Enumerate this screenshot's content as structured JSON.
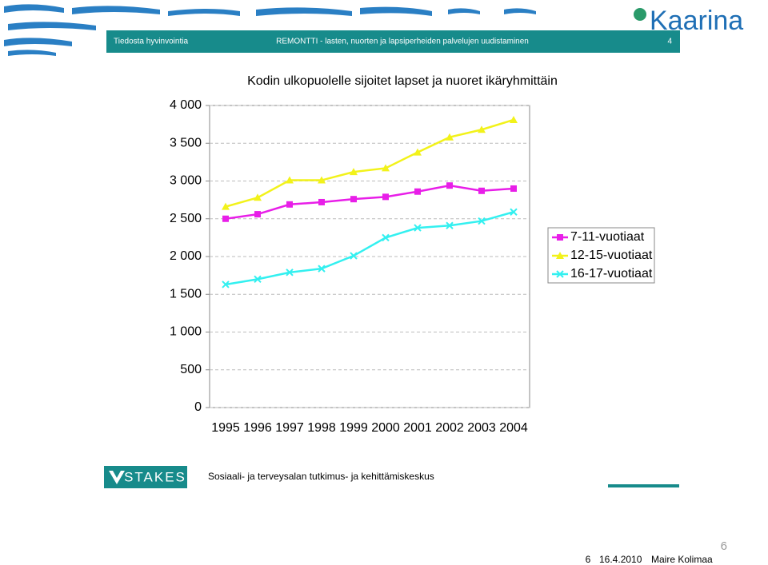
{
  "header": {
    "left": "Tiedosta hyvinvointia",
    "center": "REMONTTI - lasten, nuorten ja lapsiperheiden palvelujen uudistaminen",
    "right": "4",
    "logo": "Kaarina"
  },
  "chart_data": {
    "type": "line",
    "title": "Kodin ulkopuolelle sijoitet lapset ja nuoret ikäryhmittäin",
    "categories": [
      "1995",
      "1996",
      "1997",
      "1998",
      "1999",
      "2000",
      "2001",
      "2002",
      "2003",
      "2004"
    ],
    "series": [
      {
        "name": "7-11-vuotiaat",
        "color": "#e81ee8",
        "marker": "square",
        "values": [
          2500,
          2560,
          2690,
          2720,
          2760,
          2790,
          2860,
          2940,
          2870,
          2900
        ]
      },
      {
        "name": "12-15-vuotiaat",
        "color": "#f2f21a",
        "marker": "triangle",
        "values": [
          2660,
          2780,
          3010,
          3010,
          3120,
          3170,
          3380,
          3580,
          3680,
          3810
        ]
      },
      {
        "name": "16-17-vuotiaat",
        "color": "#33f0f0",
        "marker": "x",
        "values": [
          1630,
          1700,
          1790,
          1840,
          2010,
          2250,
          2380,
          2410,
          2470,
          2590
        ]
      }
    ],
    "ylim": [
      0,
      4000
    ],
    "yticks": [
      0,
      500,
      {
        "value": 1000,
        "label": "1 000"
      },
      {
        "value": 1500,
        "label": "1 500"
      },
      {
        "value": 2000,
        "label": "2 000"
      },
      {
        "value": 2500,
        "label": "2 500"
      },
      {
        "value": 3000,
        "label": "3 000"
      },
      {
        "value": 3500,
        "label": "3 500"
      },
      {
        "value": 4000,
        "label": "4 000"
      }
    ],
    "grid": true,
    "legend": "right"
  },
  "footer": {
    "logo": "STAKES",
    "org": "Sosiaali- ja terveysalan tutkimus- ja kehittämiskeskus",
    "slide": "6",
    "number": "6",
    "date": "16.4.2010",
    "author": "Maire Kolimaa"
  }
}
